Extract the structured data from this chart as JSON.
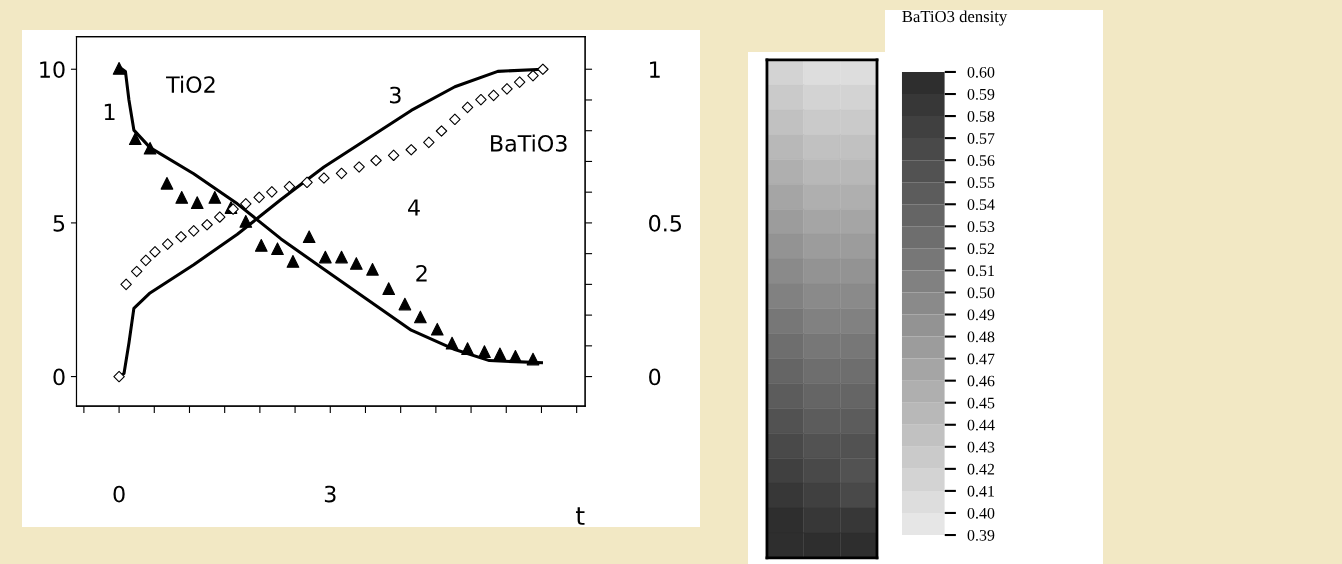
{
  "chart_data": [
    {
      "type": "line",
      "xlabel": "t",
      "xlim": [
        -0.605,
        6.62
      ],
      "xticks": [
        {
          "value": -0.5,
          "label": null
        },
        {
          "value": 0,
          "label": "0"
        },
        {
          "value": 0.5,
          "label": null
        },
        {
          "value": 1,
          "label": null
        },
        {
          "value": 1.5,
          "label": null
        },
        {
          "value": 2,
          "label": null
        },
        {
          "value": 2.5,
          "label": null
        },
        {
          "value": 3,
          "label": "3"
        },
        {
          "value": 3.5,
          "label": null
        },
        {
          "value": 4,
          "label": null
        },
        {
          "value": 4.5,
          "label": null
        },
        {
          "value": 5,
          "label": null
        },
        {
          "value": 5.5,
          "label": null
        },
        {
          "value": 6,
          "label": null
        },
        {
          "value": 6.5,
          "label": null
        }
      ],
      "ylim": [
        -0.96,
        11.06
      ],
      "yticks": [
        0,
        5,
        10
      ],
      "y2lim": [
        -0.096,
        1.106
      ],
      "y2ticks": [
        0,
        {
          "value": 0.1,
          "label": null
        },
        {
          "value": 0.2,
          "label": null
        },
        {
          "value": 0.3,
          "label": null
        },
        {
          "value": 0.4,
          "label": null
        },
        0.5,
        {
          "value": 0.6,
          "label": null
        },
        {
          "value": 0.7,
          "label": null
        },
        {
          "value": 0.8,
          "label": null
        },
        {
          "value": 0.9,
          "label": null
        },
        1
      ],
      "grid": false,
      "legend": false,
      "series": [
        {
          "type": "scatter",
          "name": "2",
          "marker": "triangle",
          "color": "#000000",
          "x": [
            0,
            0.23,
            0.44,
            0.68,
            0.89,
            1.11,
            1.36,
            1.59,
            1.8,
            2.02,
            2.25,
            2.47,
            2.7,
            2.93,
            3.16,
            3.37,
            3.6,
            3.83,
            4.06,
            4.28,
            4.52,
            4.73,
            4.95,
            5.19,
            5.41,
            5.63,
            5.88
          ],
          "values": [
            10.03,
            7.74,
            7.43,
            6.29,
            5.83,
            5.66,
            5.83,
            5.5,
            5.05,
            4.27,
            4.16,
            3.75,
            4.55,
            3.89,
            3.89,
            3.68,
            3.49,
            2.86,
            2.36,
            1.94,
            1.54,
            1.09,
            0.91,
            0.81,
            0.74,
            0.66,
            0.57
          ]
        },
        {
          "type": "line",
          "name": "1",
          "line_style": "solid",
          "color": "#000000",
          "x": [
            0,
            0.09,
            0.14,
            0.21,
            0.44,
            1.06,
            1.68,
            1.99,
            2.3,
            2.91,
            3.53,
            4.15,
            4.77,
            5.26,
            6.0
          ],
          "values": [
            10.07,
            9.93,
            9.0,
            8.02,
            7.45,
            6.6,
            5.62,
            5.05,
            4.48,
            3.49,
            2.5,
            1.51,
            0.88,
            0.52,
            0.45
          ]
        },
        {
          "type": "line",
          "name": "3",
          "axis": "y2",
          "line_style": "solid",
          "color": "#000000",
          "x": [
            0,
            0.07,
            0.14,
            0.21,
            0.44,
            1.06,
            1.68,
            2.3,
            2.91,
            3.53,
            4.15,
            4.77,
            5.38,
            6.0
          ],
          "values": [
            0,
            0.01,
            0.109,
            0.222,
            0.272,
            0.364,
            0.463,
            0.576,
            0.682,
            0.774,
            0.866,
            0.943,
            0.993,
            1.0
          ]
        },
        {
          "type": "scatter",
          "name": "4",
          "axis": "y2",
          "marker": "diamond",
          "color": "#000000",
          "x": [
            0,
            0.1,
            0.25,
            0.38,
            0.51,
            0.69,
            0.88,
            1.06,
            1.25,
            1.43,
            1.62,
            1.8,
            1.99,
            2.17,
            2.42,
            2.67,
            2.91,
            3.16,
            3.41,
            3.65,
            3.9,
            4.15,
            4.4,
            4.58,
            4.77,
            4.95,
            5.14,
            5.32,
            5.51,
            5.69,
            5.88,
            6.02
          ],
          "values": [
            0,
            0.3,
            0.342,
            0.378,
            0.406,
            0.431,
            0.455,
            0.474,
            0.494,
            0.519,
            0.545,
            0.562,
            0.583,
            0.601,
            0.618,
            0.632,
            0.646,
            0.661,
            0.682,
            0.703,
            0.72,
            0.738,
            0.762,
            0.799,
            0.837,
            0.876,
            0.901,
            0.915,
            0.936,
            0.958,
            0.979,
            1.0
          ]
        }
      ],
      "annotations": [
        "TiO2",
        "BaTiO3"
      ]
    },
    {
      "type": "heatmap",
      "clabel": "BaTiO3 density",
      "categories": [
        null,
        null,
        null
      ],
      "y_categories": [
        null,
        null,
        null,
        null,
        null,
        null,
        null,
        null,
        null,
        null,
        null,
        null,
        null,
        null,
        null,
        null,
        null,
        null,
        null,
        null
      ],
      "cells": [
        [
          0.41,
          0.4,
          0.4
        ],
        [
          0.42,
          0.41,
          0.41
        ],
        [
          0.43,
          0.42,
          0.42
        ],
        [
          0.44,
          0.43,
          0.43
        ],
        [
          0.45,
          0.44,
          0.44
        ],
        [
          0.46,
          0.45,
          0.45
        ],
        [
          0.47,
          0.46,
          0.46
        ],
        [
          0.48,
          0.47,
          0.47
        ],
        [
          0.49,
          0.48,
          0.48
        ],
        [
          0.5,
          0.49,
          0.49
        ],
        [
          0.51,
          0.5,
          0.5
        ],
        [
          0.52,
          0.51,
          0.51
        ],
        [
          0.53,
          0.52,
          0.52
        ],
        [
          0.54,
          0.53,
          0.53
        ],
        [
          0.55,
          0.54,
          0.54
        ],
        [
          0.56,
          0.55,
          0.55
        ],
        [
          0.57,
          0.56,
          0.55
        ],
        [
          0.58,
          0.57,
          0.56
        ],
        [
          0.59,
          0.58,
          0.58
        ],
        [
          0.59,
          0.59,
          0.6
        ]
      ],
      "clim": [
        0.39,
        0.6
      ],
      "cticks": [
        {
          "value": 0.39,
          "label": "0.39"
        },
        {
          "value": 0.4,
          "label": "0.40"
        },
        {
          "value": 0.41,
          "label": "0.41"
        },
        {
          "value": 0.42,
          "label": "0.42"
        },
        {
          "value": 0.43,
          "label": "0.43"
        },
        {
          "value": 0.44,
          "label": "0.44"
        },
        {
          "value": 0.45,
          "label": "0.45"
        },
        {
          "value": 0.46,
          "label": "0.46"
        },
        {
          "value": 0.47,
          "label": "0.47"
        },
        {
          "value": 0.48,
          "label": "0.48"
        },
        {
          "value": 0.49,
          "label": "0.49"
        },
        {
          "value": 0.5,
          "label": "0.50"
        },
        {
          "value": 0.51,
          "label": "0.51"
        },
        {
          "value": 0.52,
          "label": "0.52"
        },
        {
          "value": 0.53,
          "label": "0.53"
        },
        {
          "value": 0.54,
          "label": "0.54"
        },
        {
          "value": 0.55,
          "label": "0.55"
        },
        {
          "value": 0.56,
          "label": "0.56"
        },
        {
          "value": 0.57,
          "label": "0.57"
        },
        {
          "value": 0.58,
          "label": "0.58"
        },
        {
          "value": 0.59,
          "label": "0.59"
        },
        {
          "value": 0.6,
          "label": "0.60"
        }
      ]
    }
  ]
}
